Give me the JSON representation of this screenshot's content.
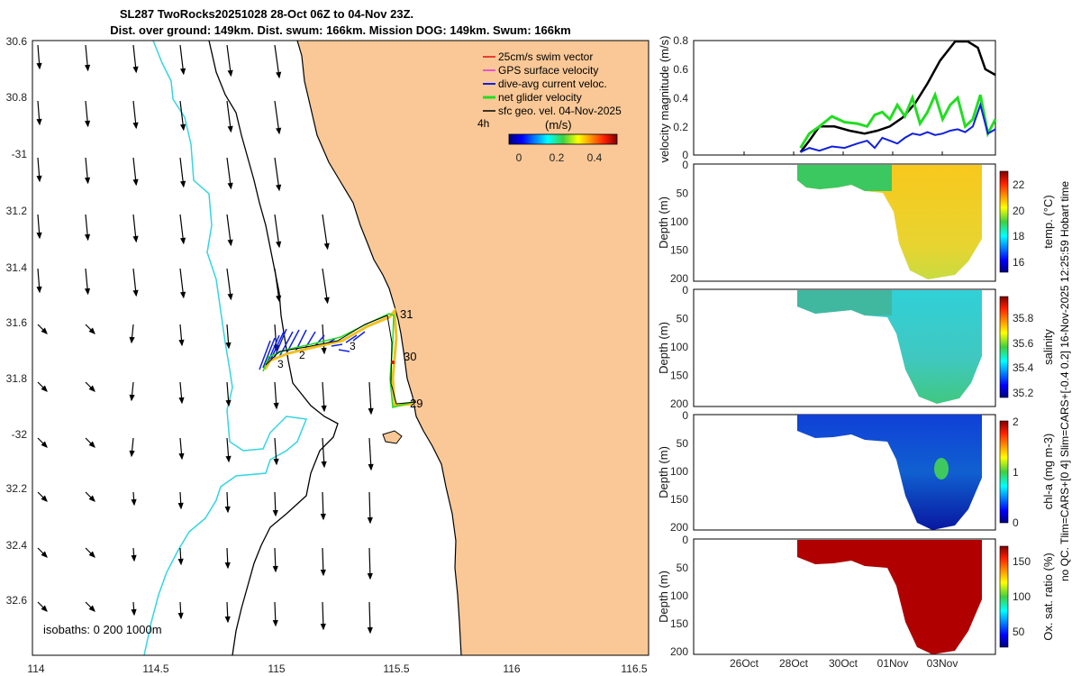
{
  "colors": {
    "land": "#f9c896",
    "isobath_0": "#000000",
    "isobath_200": "#000000",
    "isobath_1000": "#33d6e0",
    "swim_vector": "#e01010",
    "gps_velocity": "#e030e0",
    "dive_avg": "#1020e0",
    "net_glider": "#22dd22",
    "sfc_geo": "#000000",
    "track": "#f0c020"
  },
  "header": {
    "title_line1": "SL287 TwoRocks20251028 28-Oct 06Z to 04-Nov 23Z.",
    "title_line2": "Dist. over ground: 149km. Dist. swum: 166km. Mission DOG: 149km. Swum: 166km"
  },
  "map": {
    "legend": [
      {
        "key": "swim_vector",
        "label": "25cm/s swim vector"
      },
      {
        "key": "gps_velocity",
        "label": "GPS surface velocity"
      },
      {
        "key": "dive_avg",
        "label": "dive-avg current veloc."
      },
      {
        "key": "net_glider",
        "label": "net glider velocity"
      },
      {
        "key": "sfc_geo",
        "label": "sfc geo. vel. 04-Nov-2025"
      }
    ],
    "time_step_label": "4h",
    "colorbar_units": "(m/s)",
    "colorbar_ticks": [
      "0",
      "0.2",
      "0.4"
    ],
    "isobaths_label": "isobaths: 0   200  1000m",
    "lat_ticks": [
      "30.6",
      "30.8",
      "-31",
      "31.2",
      "31.4",
      "31.6",
      "31.8",
      "-32",
      "32.2",
      "32.4",
      "32.6"
    ],
    "lon_ticks": [
      "114",
      "114.5",
      "115",
      "115.5",
      "116",
      "116.5"
    ],
    "day_labels": [
      {
        "text": "31"
      },
      {
        "text": "30"
      },
      {
        "text": "29"
      },
      {
        "text": "3"
      },
      {
        "text": "2"
      },
      {
        "text": "3"
      }
    ]
  },
  "timeseries": {
    "velocity_ylabel": "velocity magnitude (m/s)",
    "velocity_yticks": [
      "0.8",
      "0.6",
      "0.4",
      "0.2",
      "0"
    ],
    "depth_label": "Depth (m)",
    "depth_ticks": [
      "0",
      "50",
      "100",
      "150",
      "200"
    ],
    "x_ticks": [
      "26Oct",
      "28Oct",
      "30Oct",
      "01Nov",
      "03Nov"
    ],
    "side_note": "no QC. Tlim=CARS+[0 4] Slim=CARS+[-0.4 0.2] 16-Nov-2025 12:25:59 Hobart time",
    "panels": [
      {
        "name": "temperature",
        "label": "temp. (°C)",
        "ticks": [
          "22",
          "20",
          "18",
          "16"
        ]
      },
      {
        "name": "salinity",
        "label": "salinity",
        "ticks": [
          "35.8",
          "35.6",
          "35.4",
          "35.2"
        ]
      },
      {
        "name": "chlorophyll",
        "label": "chl-a (mg m-3)",
        "ticks": [
          "2",
          "1",
          "0"
        ]
      },
      {
        "name": "oxygen",
        "label": "Ox. sat. ratio (%)",
        "ticks": [
          "150",
          "100",
          "50"
        ]
      }
    ]
  },
  "chart_data": {
    "type": "line",
    "title": "SL287 TwoRocks20251028 28-Oct 06Z to 04-Nov 23Z.",
    "xlabel": "",
    "ylabel": "velocity magnitude (m/s)",
    "x_range_days_from_24Oct": [
      0,
      12
    ],
    "ylim": [
      0,
      0.8
    ],
    "series": [
      {
        "name": "sfc geo. vel.",
        "x": [
          4.25,
          4.6,
          5.0,
          5.6,
          6.2,
          6.8,
          7.3,
          7.8,
          8.3,
          8.8,
          9.3,
          9.8,
          10.4,
          10.9,
          11.3,
          11.6,
          12.0
        ],
        "values": [
          0.02,
          0.1,
          0.2,
          0.2,
          0.17,
          0.15,
          0.17,
          0.2,
          0.26,
          0.36,
          0.5,
          0.66,
          0.8,
          0.82,
          0.75,
          0.6,
          0.56
        ]
      },
      {
        "name": "net glider velocity",
        "x": [
          4.25,
          4.6,
          5.0,
          5.5,
          6.0,
          6.5,
          6.9,
          7.2,
          7.5,
          7.8,
          8.1,
          8.4,
          8.7,
          9.0,
          9.3,
          9.6,
          9.9,
          10.2,
          10.5,
          10.8,
          11.1,
          11.4,
          11.7,
          12.0
        ],
        "values": [
          0.05,
          0.15,
          0.2,
          0.27,
          0.23,
          0.22,
          0.2,
          0.28,
          0.3,
          0.25,
          0.35,
          0.27,
          0.4,
          0.22,
          0.3,
          0.42,
          0.25,
          0.35,
          0.4,
          0.2,
          0.25,
          0.42,
          0.15,
          0.25
        ]
      },
      {
        "name": "dive-avg current veloc.",
        "x": [
          4.25,
          4.6,
          5.0,
          5.5,
          6.0,
          6.5,
          6.9,
          7.2,
          7.5,
          7.8,
          8.1,
          8.4,
          8.7,
          9.0,
          9.3,
          9.6,
          9.9,
          10.2,
          10.5,
          10.8,
          11.1,
          11.4,
          11.7,
          12.0
        ],
        "values": [
          0.02,
          0.05,
          0.03,
          0.06,
          0.05,
          0.08,
          0.1,
          0.05,
          0.12,
          0.1,
          0.08,
          0.12,
          0.15,
          0.14,
          0.16,
          0.14,
          0.15,
          0.17,
          0.18,
          0.16,
          0.2,
          0.35,
          0.15,
          0.18
        ]
      }
    ]
  }
}
